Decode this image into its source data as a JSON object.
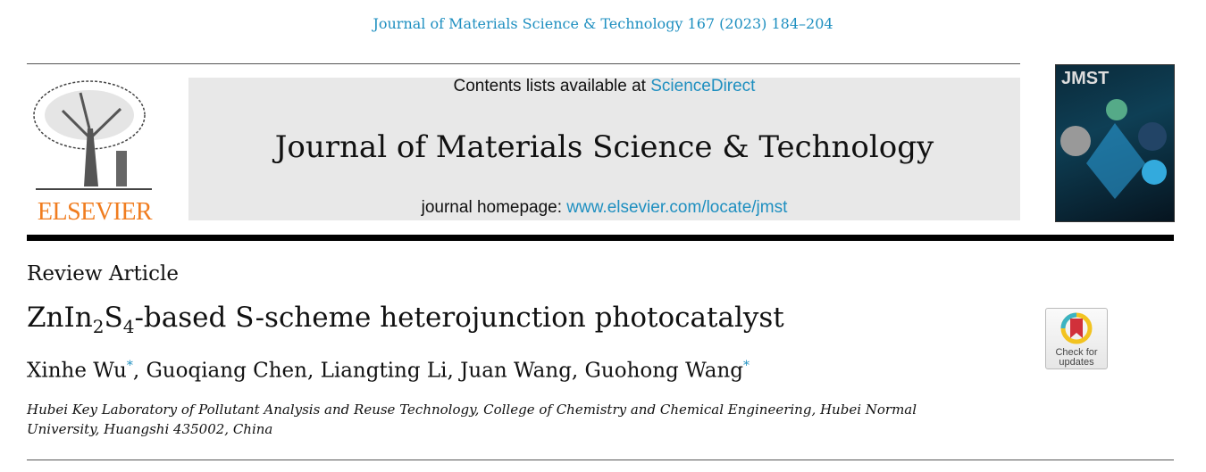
{
  "journal_ref": "Journal of Materials Science & Technology 167 (2023) 184–204",
  "publisher": "ELSEVIER",
  "banner": {
    "contents_prefix": "Contents lists available at ",
    "contents_link": "ScienceDirect",
    "journal_title": "Journal of Materials Science & Technology",
    "homepage_prefix": "journal homepage: ",
    "homepage_link": "www.elsevier.com/locate/jmst"
  },
  "cover": {
    "title": "JMST"
  },
  "article": {
    "type": "Review Article",
    "title_parts": [
      "ZnIn",
      "2",
      "S",
      "4",
      "-based S-scheme heterojunction photocatalyst"
    ],
    "authors": [
      {
        "name": "Xinhe Wu",
        "corr": "*"
      },
      {
        "name": "Guoqiang Chen"
      },
      {
        "name": "Liangting Li"
      },
      {
        "name": "Juan Wang"
      },
      {
        "name": "Guohong Wang",
        "corr": "*"
      }
    ],
    "affiliation": "Hubei Key Laboratory of Pollutant Analysis and Reuse Technology, College of Chemistry and Chemical Engineering, Hubei Normal University, Huangshi 435002, China"
  },
  "badge": {
    "line1": "Check for",
    "line2": "updates"
  }
}
